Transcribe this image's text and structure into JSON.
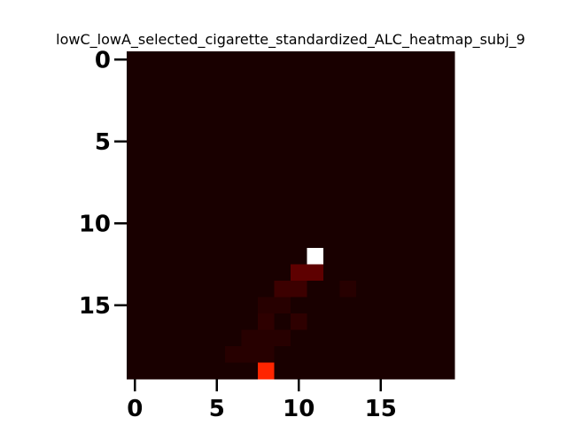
{
  "chart_data": {
    "type": "heatmap",
    "title": "lowC_lowA_selected_cigarette_standardized_ALC_heatmap_subj_9",
    "xlabel": "",
    "ylabel": "",
    "rows": 20,
    "cols": 20,
    "x_ticks": [
      0,
      5,
      10,
      15
    ],
    "y_ticks": [
      0,
      5,
      10,
      15
    ],
    "x_tick_labels": [
      "0",
      "5",
      "10",
      "15"
    ],
    "y_tick_labels": [
      "0",
      "5",
      "10",
      "15"
    ],
    "colormap": "hot",
    "value_range": [
      0,
      1
    ],
    "background_value": 0.02,
    "highlight_cells": [
      {
        "row": 12,
        "col": 11,
        "value": 1.0
      },
      {
        "row": 13,
        "col": 10,
        "value": 0.12
      },
      {
        "row": 13,
        "col": 11,
        "value": 0.12
      },
      {
        "row": 14,
        "col": 9,
        "value": 0.07
      },
      {
        "row": 14,
        "col": 10,
        "value": 0.07
      },
      {
        "row": 14,
        "col": 13,
        "value": 0.04
      },
      {
        "row": 15,
        "col": 8,
        "value": 0.04
      },
      {
        "row": 15,
        "col": 9,
        "value": 0.04
      },
      {
        "row": 16,
        "col": 8,
        "value": 0.05
      },
      {
        "row": 16,
        "col": 10,
        "value": 0.05
      },
      {
        "row": 17,
        "col": 7,
        "value": 0.04
      },
      {
        "row": 17,
        "col": 8,
        "value": 0.04
      },
      {
        "row": 17,
        "col": 9,
        "value": 0.04
      },
      {
        "row": 18,
        "col": 6,
        "value": 0.04
      },
      {
        "row": 18,
        "col": 7,
        "value": 0.04
      },
      {
        "row": 18,
        "col": 8,
        "value": 0.04
      },
      {
        "row": 19,
        "col": 8,
        "value": 0.42
      }
    ]
  }
}
